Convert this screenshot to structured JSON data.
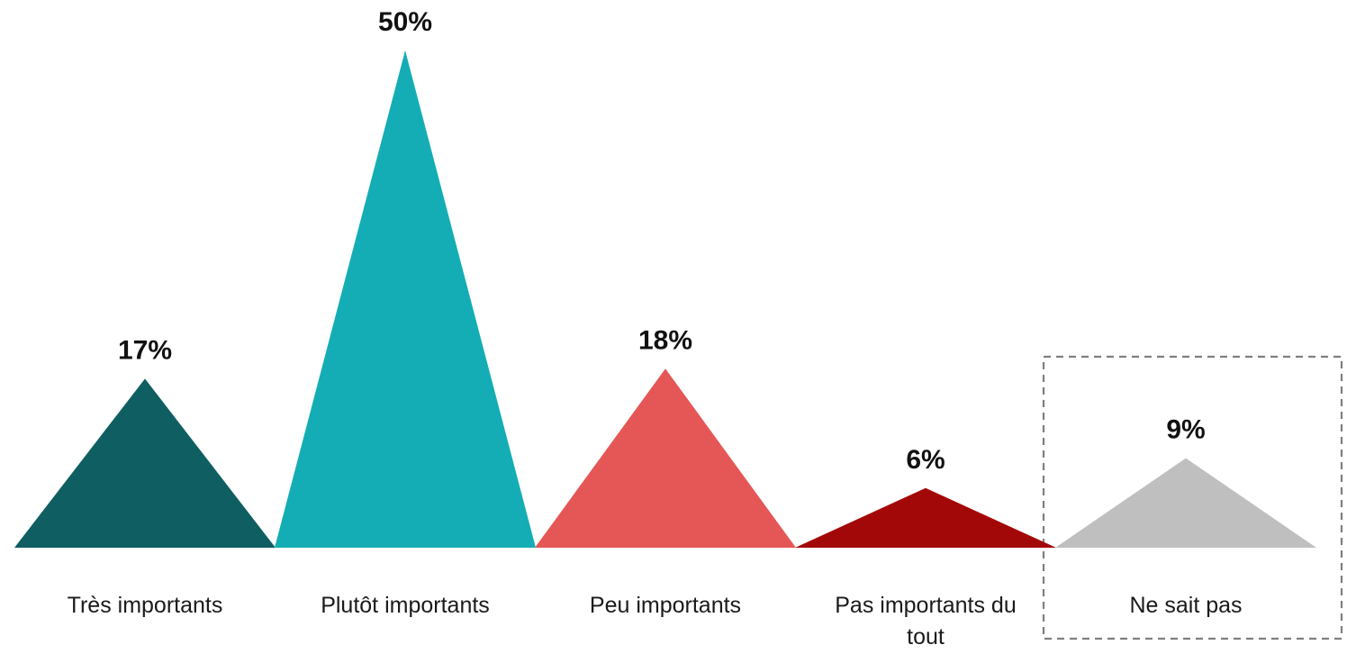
{
  "chart_data": {
    "type": "bar",
    "bar_shape": "triangle",
    "categories": [
      "Très importants",
      "Plutôt importants",
      "Peu importants",
      "Pas importants du tout",
      "Ne sait pas"
    ],
    "category_lines": [
      [
        "Très importants"
      ],
      [
        "Plutôt importants"
      ],
      [
        "Peu importants"
      ],
      [
        "Pas importants du",
        "tout"
      ],
      [
        "Ne sait pas"
      ]
    ],
    "values": [
      17,
      50,
      18,
      6,
      9
    ],
    "value_labels": [
      "17%",
      "50%",
      "18%",
      "6%",
      "9%"
    ],
    "colors": [
      "#0f5e62",
      "#14adb5",
      "#e45756",
      "#a30808",
      "#bfbfbf"
    ],
    "highlighted_category": "Ne sait pas",
    "highlight_style": "dashed-box",
    "title": "",
    "xlabel": "",
    "ylabel": "",
    "ylim": [
      0,
      50
    ],
    "grid": false,
    "legend": "none"
  }
}
